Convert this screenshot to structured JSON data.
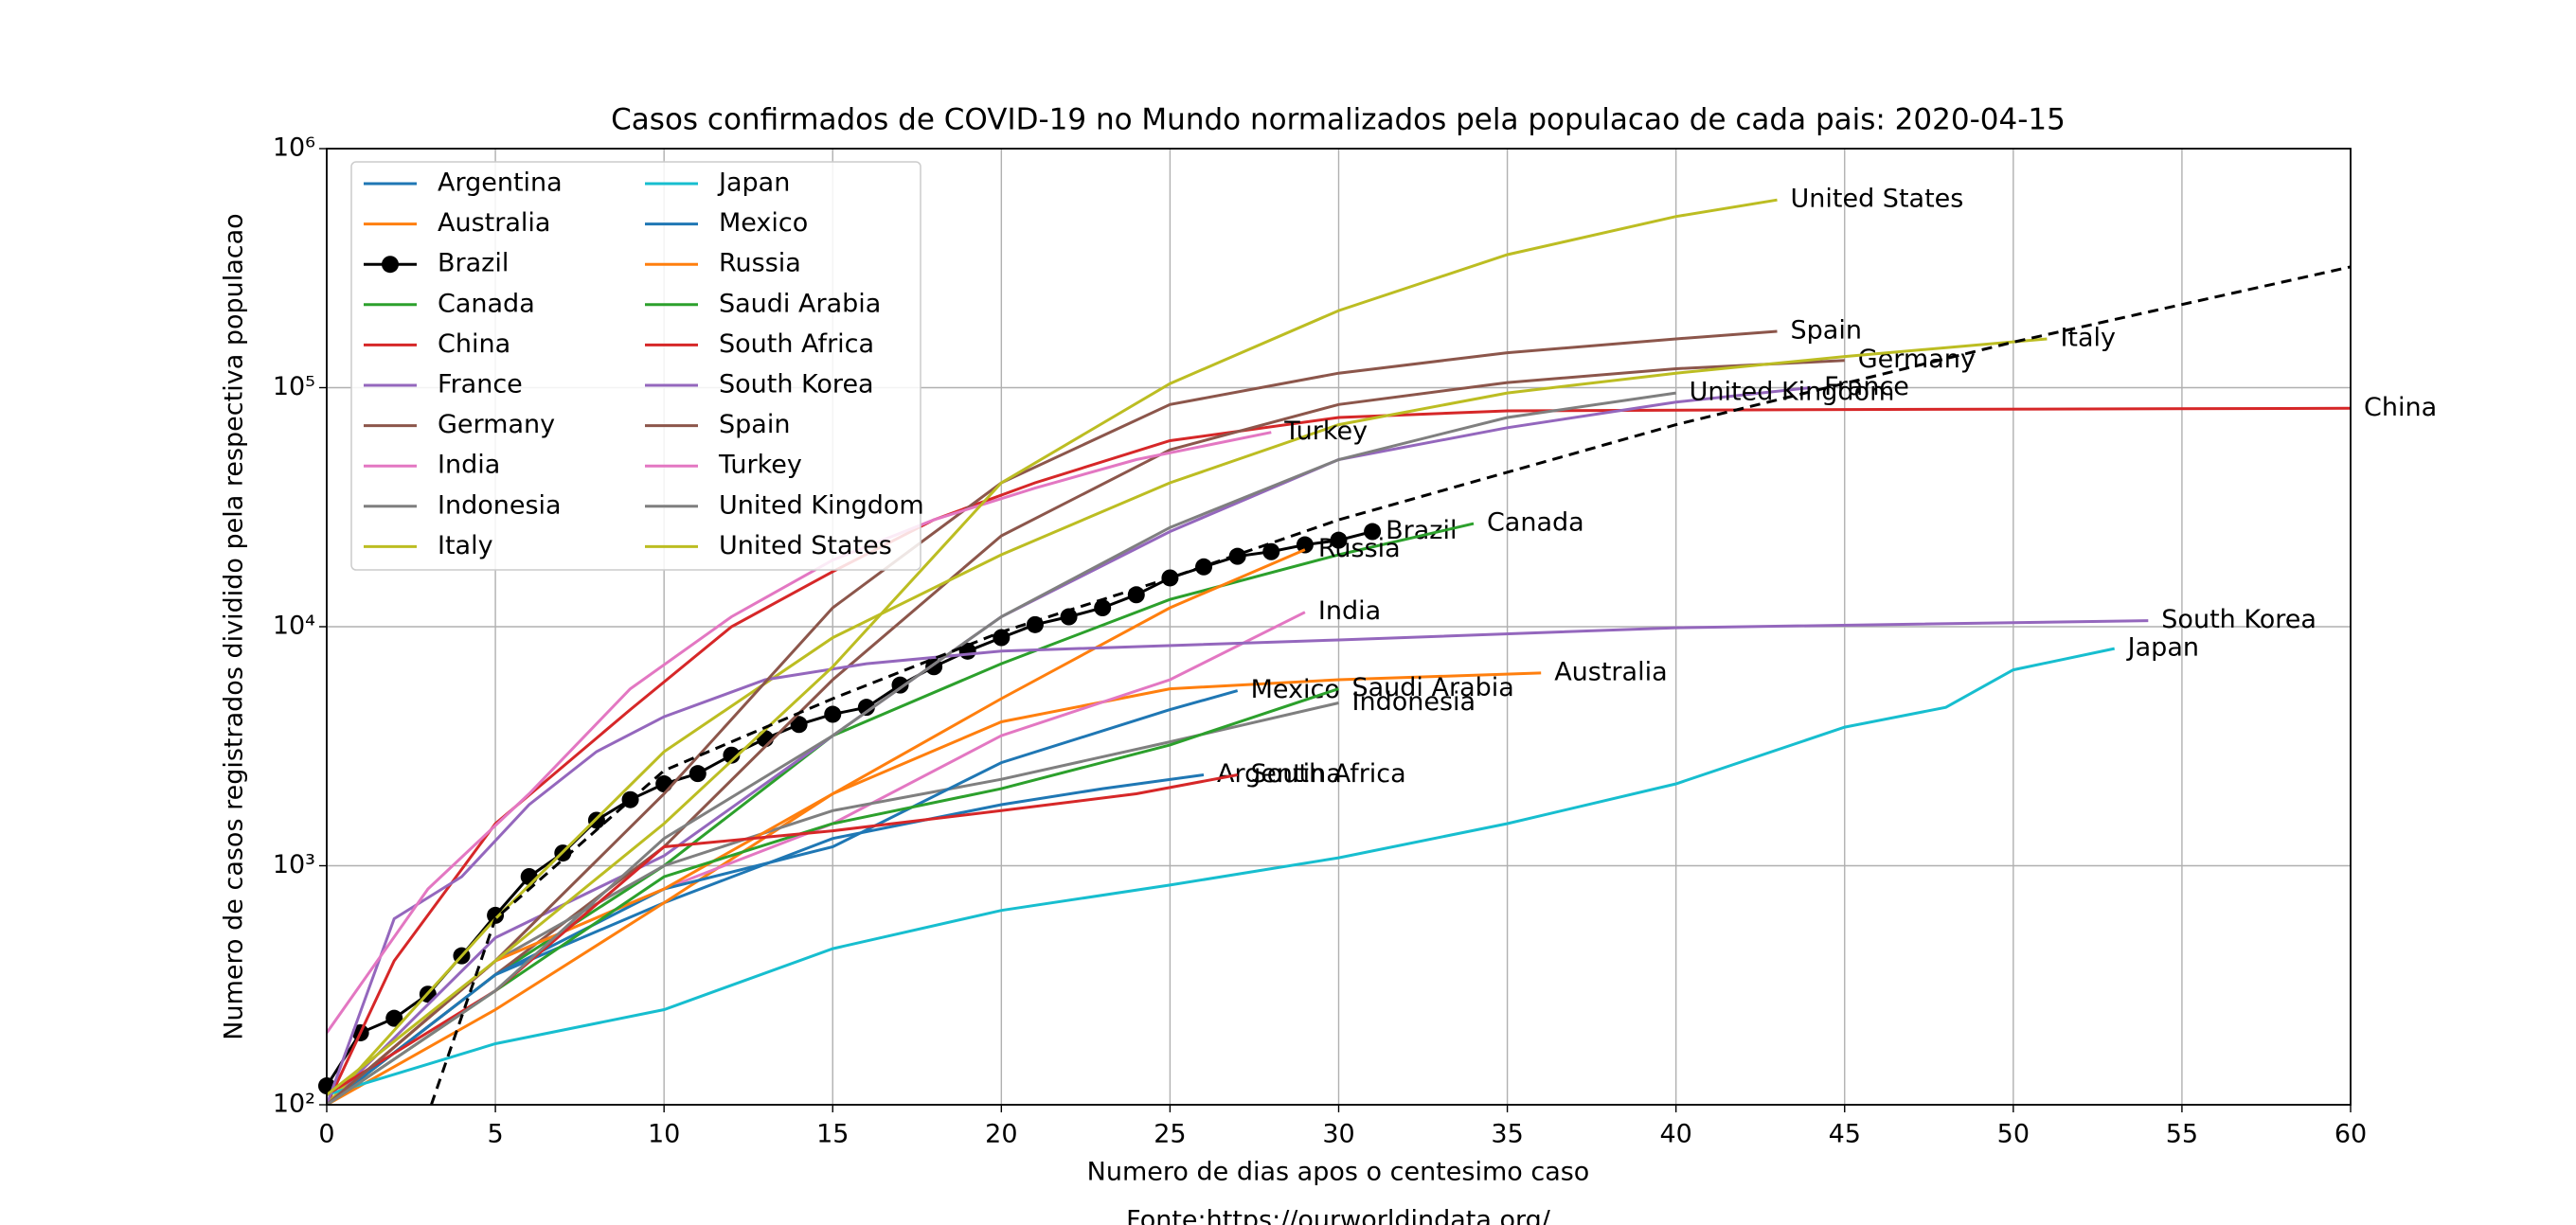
{
  "chart_data": {
    "type": "line",
    "title": "Casos confirmados de COVID-19 no Mundo normalizados pela populacao de cada pais: 2020-04-15",
    "x_label": "Numero de dias apos o centesimo caso",
    "y_label": "Numero de casos registrados dividido pela respectiva populacao",
    "source": "Fonte:https://ourworldindata.org/",
    "log_y": true,
    "grid": true,
    "legend_position": "upper left",
    "legend_columns": 2,
    "xlim": [
      0,
      60
    ],
    "xticks": [
      0,
      5,
      10,
      15,
      20,
      25,
      30,
      35,
      40,
      45,
      50,
      55,
      60
    ],
    "ylim": [
      100,
      1000000
    ],
    "yticks": [
      {
        "value": 100,
        "label": "10²"
      },
      {
        "value": 1000,
        "label": "10³"
      },
      {
        "value": 10000,
        "label": "10⁴"
      },
      {
        "value": 100000,
        "label": "10⁵"
      },
      {
        "value": 1000000,
        "label": "10⁶"
      }
    ],
    "series": [
      {
        "name": "Argentina",
        "color": "#1f77b4",
        "x": [
          0,
          5,
          10,
          15,
          20,
          23,
          26
        ],
        "values": [
          100,
          350,
          700,
          1300,
          1800,
          2100,
          2400
        ]
      },
      {
        "name": "Australia",
        "color": "#ff7f0e",
        "x": [
          0,
          5,
          10,
          15,
          20,
          25,
          30,
          36
        ],
        "values": [
          100,
          250,
          700,
          2000,
          4000,
          5500,
          6000,
          6400
        ]
      },
      {
        "name": "Brazil",
        "color": "#000000",
        "marker": "o",
        "x": [
          0,
          1,
          2,
          3,
          4,
          5,
          6,
          7,
          8,
          9,
          10,
          11,
          12,
          13,
          14,
          15,
          16,
          17,
          18,
          19,
          20,
          21,
          22,
          23,
          24,
          25,
          26,
          27,
          28,
          29,
          30,
          31
        ],
        "values": [
          120,
          200,
          230,
          290,
          420,
          620,
          900,
          1130,
          1550,
          1890,
          2200,
          2430,
          2900,
          3400,
          3900,
          4300,
          4600,
          5700,
          6800,
          7900,
          9000,
          10200,
          11000,
          12000,
          13600,
          16000,
          17800,
          19700,
          20600,
          22000,
          23000,
          25000
        ]
      },
      {
        "name": "Canada",
        "color": "#2ca02c",
        "x": [
          0,
          5,
          10,
          15,
          20,
          25,
          30,
          34
        ],
        "values": [
          100,
          350,
          1000,
          3500,
          7000,
          13000,
          20000,
          27000
        ]
      },
      {
        "name": "China",
        "color": "#d62728",
        "x": [
          0,
          2,
          5,
          9,
          12,
          15,
          18,
          21,
          25,
          30,
          35,
          45,
          60
        ],
        "values": [
          100,
          400,
          1500,
          4500,
          10000,
          17000,
          28000,
          40000,
          60000,
          75000,
          80000,
          81000,
          82000
        ]
      },
      {
        "name": "France",
        "color": "#9467bd",
        "x": [
          0,
          5,
          10,
          15,
          20,
          25,
          30,
          35,
          40,
          44
        ],
        "values": [
          100,
          500,
          1100,
          3500,
          11000,
          25000,
          50000,
          68000,
          87000,
          100000
        ]
      },
      {
        "name": "Germany",
        "color": "#8c564b",
        "x": [
          0,
          5,
          10,
          15,
          20,
          25,
          30,
          35,
          40,
          45
        ],
        "values": [
          100,
          350,
          1200,
          6000,
          24000,
          55000,
          85000,
          105000,
          120000,
          130000
        ]
      },
      {
        "name": "India",
        "color": "#e377c2",
        "x": [
          0,
          5,
          10,
          15,
          20,
          25,
          29
        ],
        "values": [
          100,
          400,
          800,
          1500,
          3500,
          6000,
          11500
        ]
      },
      {
        "name": "Indonesia",
        "color": "#7f7f7f",
        "x": [
          0,
          5,
          10,
          15,
          20,
          25,
          30
        ],
        "values": [
          100,
          400,
          1000,
          1700,
          2300,
          3300,
          4800
        ]
      },
      {
        "name": "Italy",
        "color": "#bcbd22",
        "x": [
          0,
          5,
          10,
          15,
          20,
          25,
          30,
          35,
          40,
          45,
          51
        ],
        "values": [
          100,
          600,
          3000,
          9000,
          20000,
          40000,
          70000,
          95000,
          115000,
          135000,
          160000
        ]
      },
      {
        "name": "Japan",
        "color": "#17becf",
        "x": [
          0,
          5,
          10,
          15,
          20,
          25,
          30,
          35,
          40,
          45,
          48,
          50,
          53
        ],
        "values": [
          110,
          180,
          250,
          450,
          650,
          830,
          1080,
          1500,
          2200,
          3800,
          4600,
          6600,
          8100
        ]
      },
      {
        "name": "Mexico",
        "color": "#1f77b4",
        "x": [
          0,
          5,
          10,
          15,
          20,
          25,
          27
        ],
        "values": [
          100,
          350,
          800,
          1200,
          2700,
          4500,
          5400
        ]
      },
      {
        "name": "Russia",
        "color": "#ff7f0e",
        "x": [
          0,
          5,
          10,
          15,
          20,
          25,
          29
        ],
        "values": [
          100,
          400,
          800,
          2000,
          5000,
          12000,
          21000
        ]
      },
      {
        "name": "Saudi Arabia",
        "color": "#2ca02c",
        "x": [
          0,
          5,
          10,
          15,
          20,
          25,
          30
        ],
        "values": [
          100,
          300,
          900,
          1500,
          2100,
          3200,
          5500
        ]
      },
      {
        "name": "South Africa",
        "color": "#d62728",
        "x": [
          0,
          5,
          10,
          15,
          20,
          24,
          27
        ],
        "values": [
          110,
          300,
          1200,
          1400,
          1700,
          2000,
          2400
        ]
      },
      {
        "name": "South Korea",
        "color": "#9467bd",
        "x": [
          0,
          2,
          4,
          6,
          8,
          10,
          13,
          16,
          20,
          30,
          40,
          54
        ],
        "values": [
          100,
          600,
          900,
          1800,
          3000,
          4200,
          6000,
          7000,
          7900,
          8800,
          9900,
          10600
        ]
      },
      {
        "name": "Spain",
        "color": "#8c564b",
        "x": [
          0,
          5,
          10,
          15,
          20,
          25,
          30,
          35,
          40,
          43
        ],
        "values": [
          100,
          400,
          2000,
          12000,
          40000,
          85000,
          115000,
          140000,
          160000,
          172000
        ]
      },
      {
        "name": "Turkey",
        "color": "#e377c2",
        "x": [
          0,
          3,
          6,
          9,
          12,
          15,
          18,
          21,
          24,
          28
        ],
        "values": [
          200,
          800,
          2000,
          5500,
          11000,
          19000,
          28000,
          38000,
          50000,
          65000
        ]
      },
      {
        "name": "United Kingdom",
        "color": "#7f7f7f",
        "x": [
          0,
          5,
          10,
          15,
          20,
          25,
          30,
          35,
          40
        ],
        "values": [
          100,
          300,
          1300,
          3500,
          11000,
          26000,
          50000,
          75000,
          95000
        ]
      },
      {
        "name": "United States",
        "color": "#bcbd22",
        "x": [
          0,
          5,
          10,
          15,
          20,
          25,
          30,
          35,
          40,
          43
        ],
        "values": [
          110,
          400,
          1500,
          6800,
          40000,
          104000,
          210000,
          360000,
          520000,
          610000
        ]
      }
    ],
    "trend_line": {
      "color": "#000000",
      "dashed": true,
      "x": [
        3.1,
        5,
        10,
        15,
        20,
        25,
        30,
        40,
        50,
        60
      ],
      "values": [
        100,
        600,
        2500,
        5000,
        9500,
        16000,
        28000,
        70000,
        155000,
        320000
      ]
    }
  }
}
